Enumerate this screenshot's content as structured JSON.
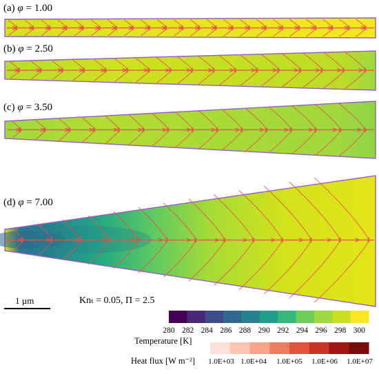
{
  "panels": [
    {
      "tag": "(a)",
      "symbol": "φ",
      "value": "1.00"
    },
    {
      "tag": "(b)",
      "symbol": "φ",
      "value": "2.50"
    },
    {
      "tag": "(c)",
      "symbol": "φ",
      "value": "3.50"
    },
    {
      "tag": "(d)",
      "symbol": "φ",
      "value": "7.00"
    }
  ],
  "scale_bar": "1 µm",
  "params": "Knₜ = 0.05, Π = 2.5",
  "chart_data": [
    {
      "type": "heatmap",
      "title": "",
      "colorbar": {
        "label": "Temperature [K]",
        "ticks": [
          "280",
          "282",
          "284",
          "286",
          "288",
          "290",
          "292",
          "294",
          "296",
          "298",
          "300"
        ],
        "range": [
          280,
          301
        ],
        "colors": [
          "#440154",
          "#482878",
          "#3e4a89",
          "#31688e",
          "#26828e",
          "#1f9e89",
          "#35b779",
          "#6ece58",
          "#9fd93f",
          "#c8e020",
          "#fde725"
        ]
      },
      "series": [
        {
          "name": "(a) φ = 1.00",
          "temperature_range_K": [
            298,
            301
          ]
        },
        {
          "name": "(b) φ = 2.50",
          "temperature_range_K": [
            295,
            300
          ]
        },
        {
          "name": "(c) φ = 3.50",
          "temperature_range_K": [
            294,
            300
          ]
        },
        {
          "name": "(d) φ = 7.00",
          "temperature_range_K": [
            286,
            301
          ]
        }
      ]
    },
    {
      "type": "heatmap",
      "colorbar": {
        "label": "Heat flux [W m⁻²]",
        "ticks": [
          "1.0E+03",
          "1.0E+04",
          "1.0E+05",
          "1.0E+06",
          "1.0E+07"
        ],
        "scale": "log",
        "colors": [
          "#fde0d9",
          "#fbc4b3",
          "#f7a48a",
          "#ef7c60",
          "#e2533e",
          "#c93426",
          "#a31515",
          "#7a0b0b"
        ]
      }
    }
  ]
}
